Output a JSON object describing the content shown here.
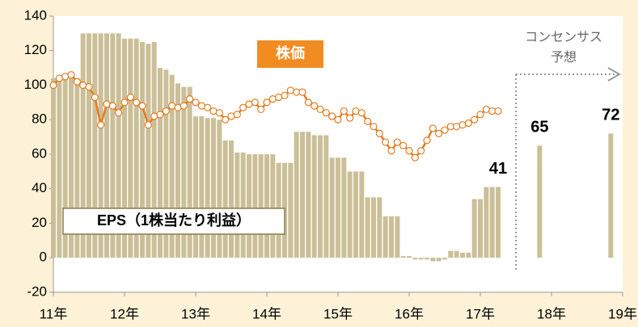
{
  "chart_data": {
    "type": "bar_line",
    "categories": [
      "11年",
      null,
      null,
      null,
      null,
      null,
      null,
      null,
      null,
      null,
      null,
      null,
      "12年",
      null,
      null,
      null,
      null,
      null,
      null,
      null,
      null,
      null,
      null,
      null,
      "13年",
      null,
      null,
      null,
      null,
      null,
      null,
      null,
      null,
      null,
      null,
      null,
      "14年",
      null,
      null,
      null,
      null,
      null,
      null,
      null,
      null,
      null,
      null,
      null,
      "15年",
      null,
      null,
      null,
      null,
      null,
      null,
      null,
      null,
      null,
      null,
      null,
      "16年",
      null,
      null,
      null,
      null,
      null,
      null,
      null,
      null,
      null,
      null,
      null,
      "17年",
      null,
      null,
      null,
      null,
      null,
      null,
      null,
      null,
      null,
      null,
      null,
      "18年",
      null,
      null,
      null,
      null,
      null,
      null,
      null,
      null,
      null,
      null,
      null,
      "19年"
    ],
    "series": [
      {
        "name": "EPS（1株当たり利益）",
        "kind": "bar",
        "color": "#cbbf98",
        "values": [
          104,
          104,
          104,
          104,
          104,
          130,
          130,
          130,
          130,
          130,
          130,
          130,
          127,
          127,
          127,
          125,
          124,
          125,
          110,
          109,
          106,
          101,
          99,
          99,
          82,
          82,
          81,
          81,
          80,
          68,
          68,
          61,
          61,
          60,
          60,
          60,
          60,
          60,
          55,
          55,
          55,
          73,
          73,
          73,
          71,
          71,
          71,
          58,
          58,
          58,
          50,
          50,
          50,
          35,
          35,
          35,
          24,
          24,
          24,
          1,
          1,
          -1,
          -1,
          -1,
          -2,
          -2,
          -1,
          4,
          4,
          3,
          3,
          34,
          34,
          41,
          41,
          41,
          null,
          null,
          null,
          null,
          null,
          null,
          65,
          null,
          null,
          null,
          null,
          null,
          null,
          null,
          null,
          null,
          null,
          null,
          72,
          null,
          null
        ]
      },
      {
        "name": "株価",
        "kind": "line",
        "color": "#e47b1e",
        "values": [
          100,
          104,
          105,
          106,
          102,
          100,
          99,
          93,
          77,
          89,
          88,
          84,
          90,
          93,
          90,
          88,
          77,
          82,
          83,
          85,
          88,
          87,
          88,
          92,
          90,
          88,
          87,
          85,
          84,
          80,
          82,
          83,
          87,
          89,
          90,
          86,
          90,
          92,
          93,
          94,
          97,
          96,
          96,
          90,
          88,
          86,
          84,
          82,
          80,
          85,
          81,
          85,
          84,
          79,
          76,
          72,
          67,
          62,
          67,
          65,
          62,
          58,
          62,
          68,
          75,
          72,
          74,
          76,
          76,
          77,
          78,
          80,
          83,
          86,
          85,
          85,
          null,
          null,
          null,
          null,
          null,
          null,
          null,
          null,
          null,
          null,
          null,
          null,
          null,
          null,
          null,
          null,
          null,
          null,
          null,
          null,
          null
        ]
      }
    ],
    "ylim": [
      -20,
      140
    ],
    "yticks": [
      -20,
      0,
      20,
      40,
      60,
      80,
      100,
      120,
      140
    ],
    "annotations": [
      "株価",
      "EPS（1株当たり利益）",
      "コンセンサス",
      "予想"
    ]
  }
}
